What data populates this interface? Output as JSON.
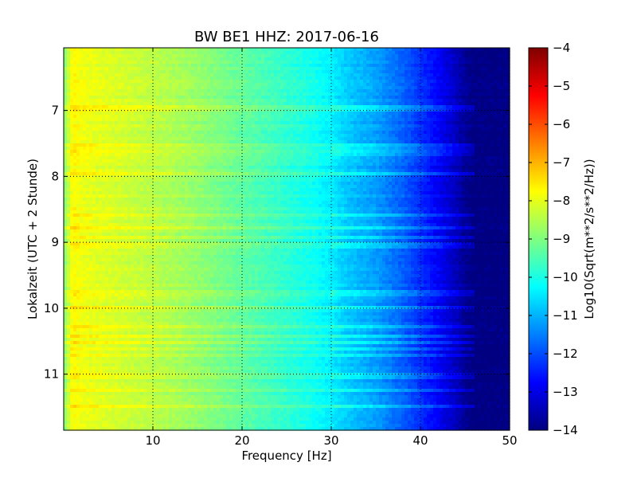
{
  "chart_data": {
    "type": "heatmap",
    "title": "BW BE1 HHZ: 2017-06-16",
    "xlabel": "Frequency [Hz]",
    "ylabel": "Lokalzeit (UTC + 2 Stunde)",
    "xlim": [
      0,
      50
    ],
    "ylim": [
      11.85,
      6.05
    ],
    "y_inverted": true,
    "x_ticks": [
      10,
      20,
      30,
      40,
      50
    ],
    "x_tick_labels": [
      "10",
      "20",
      "30",
      "40",
      "50"
    ],
    "y_ticks": [
      7,
      8,
      9,
      10,
      11
    ],
    "y_tick_labels": [
      "7",
      "8",
      "9",
      "10",
      "11"
    ],
    "grid": true,
    "colormap": "jet",
    "colorbar": {
      "label": "Log10(Sqrt(m**2/s**2/Hz))",
      "range": [
        -14,
        -4
      ],
      "ticks": [
        -4,
        -5,
        -6,
        -7,
        -8,
        -9,
        -10,
        -11,
        -12,
        -13,
        -14
      ],
      "tick_labels": [
        "−4",
        "−5",
        "−6",
        "−7",
        "−8",
        "−9",
        "−10",
        "−11",
        "−12",
        "−13",
        "−14"
      ]
    },
    "spectrum_profile": {
      "frequency_hz": [
        0,
        1,
        2,
        5,
        10,
        15,
        20,
        25,
        28,
        30,
        32,
        35,
        38,
        40,
        42,
        44,
        45,
        46,
        50
      ],
      "log10_value": [
        -9.0,
        -7.7,
        -7.9,
        -8.1,
        -8.4,
        -8.8,
        -9.3,
        -9.8,
        -10.1,
        -10.4,
        -10.8,
        -11.2,
        -11.8,
        -12.3,
        -12.8,
        -13.4,
        -13.8,
        -14.0,
        -14.0
      ]
    },
    "noise_bands_hour": [
      6.97,
      7.55,
      7.62,
      7.68,
      7.96,
      8.6,
      8.78,
      8.93,
      9.05,
      9.77,
      10.0,
      10.27,
      10.42,
      10.52,
      10.62,
      10.72,
      11.03,
      11.23,
      11.5
    ]
  }
}
